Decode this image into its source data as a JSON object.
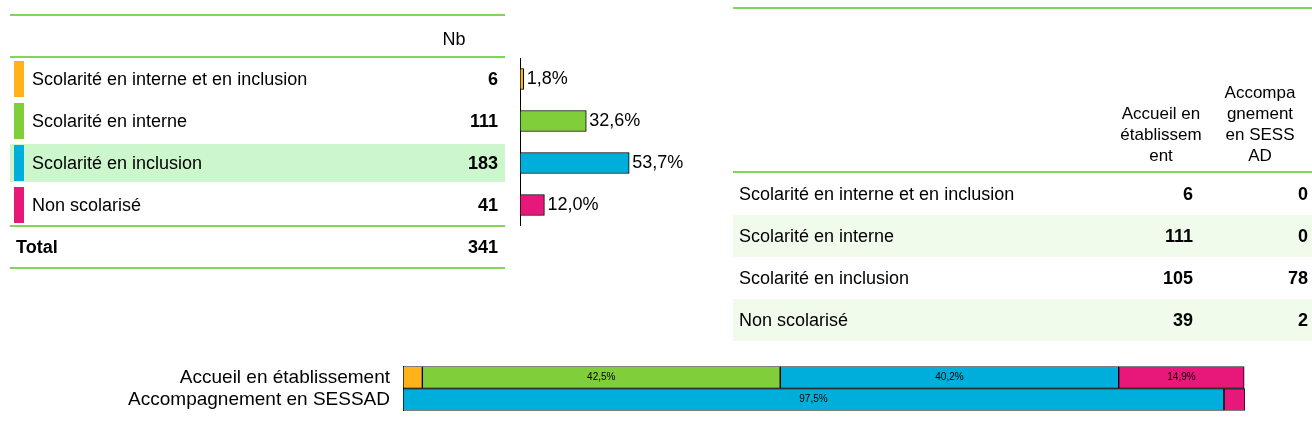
{
  "chart_data": [
    {
      "type": "bar",
      "orientation": "horizontal",
      "categories": [
        "Scolarité en interne et en inclusion",
        "Scolarité en interne",
        "Scolarité en inclusion",
        "Non scolarisé"
      ],
      "values": [
        1.8,
        32.6,
        53.7,
        12.0
      ],
      "colors": [
        "#ffb21a",
        "#7fce3a",
        "#00aedb",
        "#e8177a"
      ],
      "value_labels": [
        "1,8%",
        "32,6%",
        "53,7%",
        "12,0%"
      ],
      "tick_labels": false,
      "annotations": [
        "Nb",
        "6",
        "111",
        "183",
        "41",
        "Total",
        "341"
      ]
    },
    {
      "type": "other",
      "categories": [
        "Accueil en établissement",
        "Accompagnement en SESSAD"
      ],
      "y_categories": [
        "Scolarité en interne et en inclusion",
        "Scolarité en interne",
        "Scolarité en inclusion",
        "Non scolarisé"
      ],
      "annotations": [
        "6",
        "0",
        "111",
        "0",
        "105",
        "78",
        "39",
        "2"
      ]
    },
    {
      "type": "bar",
      "orientation": "horizontal",
      "stacked": true,
      "categories": [
        "Accueil en établissement",
        "Accompagnement en SESSAD"
      ],
      "xlim": [
        0,
        100
      ],
      "tick_labels": "y",
      "series": [
        {
          "color": "#ffb21a",
          "values": [
            2.3,
            0
          ]
        },
        {
          "color": "#7fce3a",
          "values": [
            42.5,
            0
          ],
          "value_labels": [
            "42,5%",
            null
          ]
        },
        {
          "color": "#00aedb",
          "values": [
            40.2,
            97.5
          ],
          "value_labels": [
            "40,2%",
            "97,5%"
          ]
        },
        {
          "color": "#e8177a",
          "values": [
            14.9,
            2.5
          ],
          "value_labels": [
            "14,9%",
            null
          ]
        }
      ]
    }
  ]
}
